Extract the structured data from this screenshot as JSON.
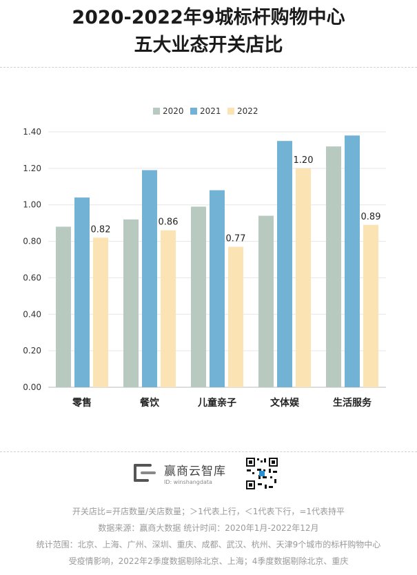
{
  "title": {
    "line1": "2020-2022年9城标杆购物中心",
    "line2": "五大业态开关店比"
  },
  "brand": {
    "name": "赢商云智库",
    "id": "ID: winshangdata"
  },
  "notes": [
    "开关店比=开店数量/关店数量；＞1代表上行，＜1代表下行，=1代表持平",
    "数据来源：赢商大数据  统计时间：2020年1月-2022年12月",
    "统计范围：北京、上海、广州、深圳、重庆、成都、武汉、杭州、天津9个城市的标杆购物中心",
    "受疫情影响，2022年2季度数据剔除北京、上海；4季度数据剔除北京、重庆"
  ],
  "colors": {
    "s2020": "#b8c9c0",
    "s2021": "#72b2d4",
    "s2022": "#fce3b4",
    "grid": "#e6e6e6",
    "axis": "#bbbbbb"
  },
  "chart_data": {
    "type": "bar",
    "categories": [
      "零售",
      "餐饮",
      "儿童亲子",
      "文体娱",
      "生活服务"
    ],
    "series": [
      {
        "name": "2020",
        "values": [
          0.88,
          0.92,
          0.99,
          0.94,
          1.32
        ]
      },
      {
        "name": "2021",
        "values": [
          1.04,
          1.19,
          1.08,
          1.35,
          1.38
        ]
      },
      {
        "name": "2022",
        "values": [
          0.82,
          0.86,
          0.77,
          1.2,
          0.89
        ]
      }
    ],
    "data_labels": [
      "0.82",
      "0.86",
      "0.77",
      "1.20",
      "0.89"
    ],
    "y_ticks": [
      "0.00",
      "0.20",
      "0.40",
      "0.60",
      "0.80",
      "1.00",
      "1.20",
      "1.40"
    ],
    "ylim": [
      0,
      1.4
    ],
    "grid": true,
    "legend": "top-center"
  }
}
